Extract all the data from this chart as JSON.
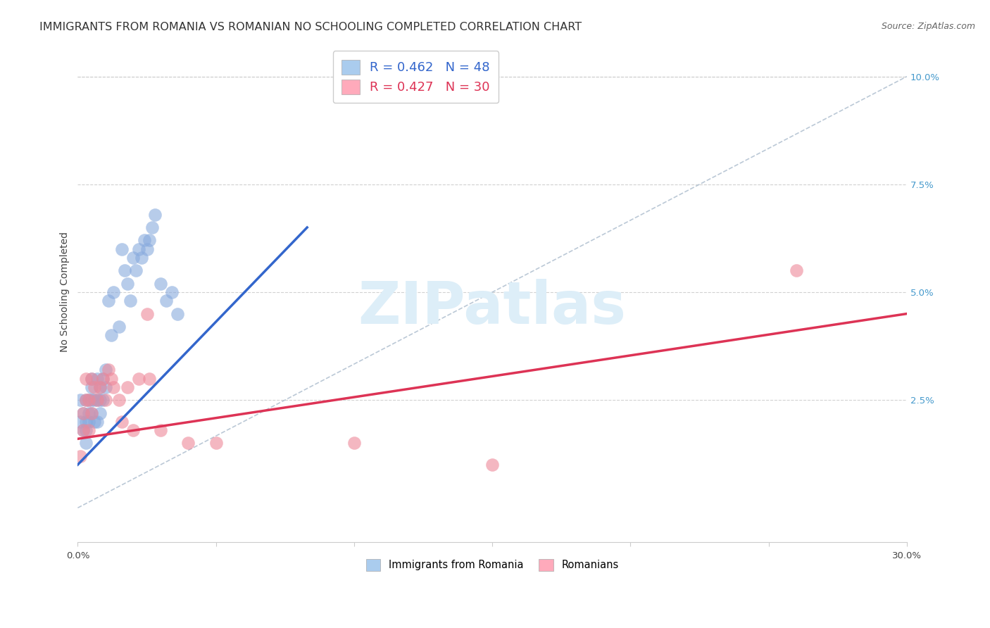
{
  "title": "IMMIGRANTS FROM ROMANIA VS ROMANIAN NO SCHOOLING COMPLETED CORRELATION CHART",
  "source": "Source: ZipAtlas.com",
  "ylabel": "No Schooling Completed",
  "xlim": [
    0.0,
    0.3
  ],
  "ylim": [
    -0.008,
    0.108
  ],
  "yticks_right": [
    0.025,
    0.05,
    0.075,
    0.1
  ],
  "ytick_labels_right": [
    "2.5%",
    "5.0%",
    "7.5%",
    "10.0%"
  ],
  "xticks": [
    0.0,
    0.05,
    0.1,
    0.15,
    0.2,
    0.25,
    0.3
  ],
  "xtick_labels": [
    "0.0%",
    "",
    "",
    "",
    "",
    "",
    "30.0%"
  ],
  "legend_R_N": [
    {
      "R": "0.462",
      "N": "48",
      "color": "#aaccee"
    },
    {
      "R": "0.427",
      "N": "30",
      "color": "#ffaabb"
    }
  ],
  "legend_bottom": [
    {
      "label": "Immigrants from Romania",
      "color": "#aaccee"
    },
    {
      "label": "Romanians",
      "color": "#ffaabb"
    }
  ],
  "blue_scatter_x": [
    0.001,
    0.001,
    0.002,
    0.002,
    0.003,
    0.003,
    0.003,
    0.003,
    0.004,
    0.004,
    0.004,
    0.005,
    0.005,
    0.005,
    0.005,
    0.006,
    0.006,
    0.007,
    0.007,
    0.007,
    0.008,
    0.008,
    0.008,
    0.009,
    0.009,
    0.01,
    0.01,
    0.011,
    0.012,
    0.013,
    0.015,
    0.016,
    0.017,
    0.018,
    0.019,
    0.02,
    0.021,
    0.022,
    0.023,
    0.024,
    0.025,
    0.026,
    0.027,
    0.028,
    0.03,
    0.032,
    0.034,
    0.036
  ],
  "blue_scatter_y": [
    0.02,
    0.025,
    0.022,
    0.018,
    0.02,
    0.025,
    0.018,
    0.015,
    0.025,
    0.022,
    0.02,
    0.028,
    0.025,
    0.03,
    0.022,
    0.025,
    0.02,
    0.03,
    0.025,
    0.02,
    0.028,
    0.025,
    0.022,
    0.03,
    0.025,
    0.032,
    0.028,
    0.048,
    0.04,
    0.05,
    0.042,
    0.06,
    0.055,
    0.052,
    0.048,
    0.058,
    0.055,
    0.06,
    0.058,
    0.062,
    0.06,
    0.062,
    0.065,
    0.068,
    0.052,
    0.048,
    0.05,
    0.045
  ],
  "pink_scatter_x": [
    0.001,
    0.002,
    0.002,
    0.003,
    0.003,
    0.004,
    0.004,
    0.005,
    0.005,
    0.006,
    0.007,
    0.008,
    0.009,
    0.01,
    0.011,
    0.012,
    0.013,
    0.015,
    0.016,
    0.018,
    0.02,
    0.022,
    0.025,
    0.026,
    0.03,
    0.04,
    0.05,
    0.1,
    0.15,
    0.26
  ],
  "pink_scatter_y": [
    0.012,
    0.018,
    0.022,
    0.025,
    0.03,
    0.018,
    0.025,
    0.022,
    0.03,
    0.028,
    0.025,
    0.028,
    0.03,
    0.025,
    0.032,
    0.03,
    0.028,
    0.025,
    0.02,
    0.028,
    0.018,
    0.03,
    0.045,
    0.03,
    0.018,
    0.015,
    0.015,
    0.015,
    0.01,
    0.055
  ],
  "blue_line_x": [
    0.0,
    0.083
  ],
  "blue_line_y": [
    0.01,
    0.065
  ],
  "pink_line_x": [
    0.0,
    0.3
  ],
  "pink_line_y": [
    0.016,
    0.045
  ],
  "diag_line_x": [
    0.0,
    0.3
  ],
  "diag_line_y": [
    0.0,
    0.1
  ],
  "background_color": "#ffffff",
  "grid_color": "#cccccc",
  "title_fontsize": 11.5,
  "source_fontsize": 9,
  "axis_label_fontsize": 10,
  "tick_fontsize": 9.5,
  "watermark_text": "ZIPatlas",
  "watermark_color": "#ddeef8",
  "watermark_fontsize": 60,
  "blue_line_color": "#3366cc",
  "pink_line_color": "#dd3355",
  "blue_dot_color": "#88aadd",
  "pink_dot_color": "#ee8899",
  "diag_line_color": "#aabbcc"
}
